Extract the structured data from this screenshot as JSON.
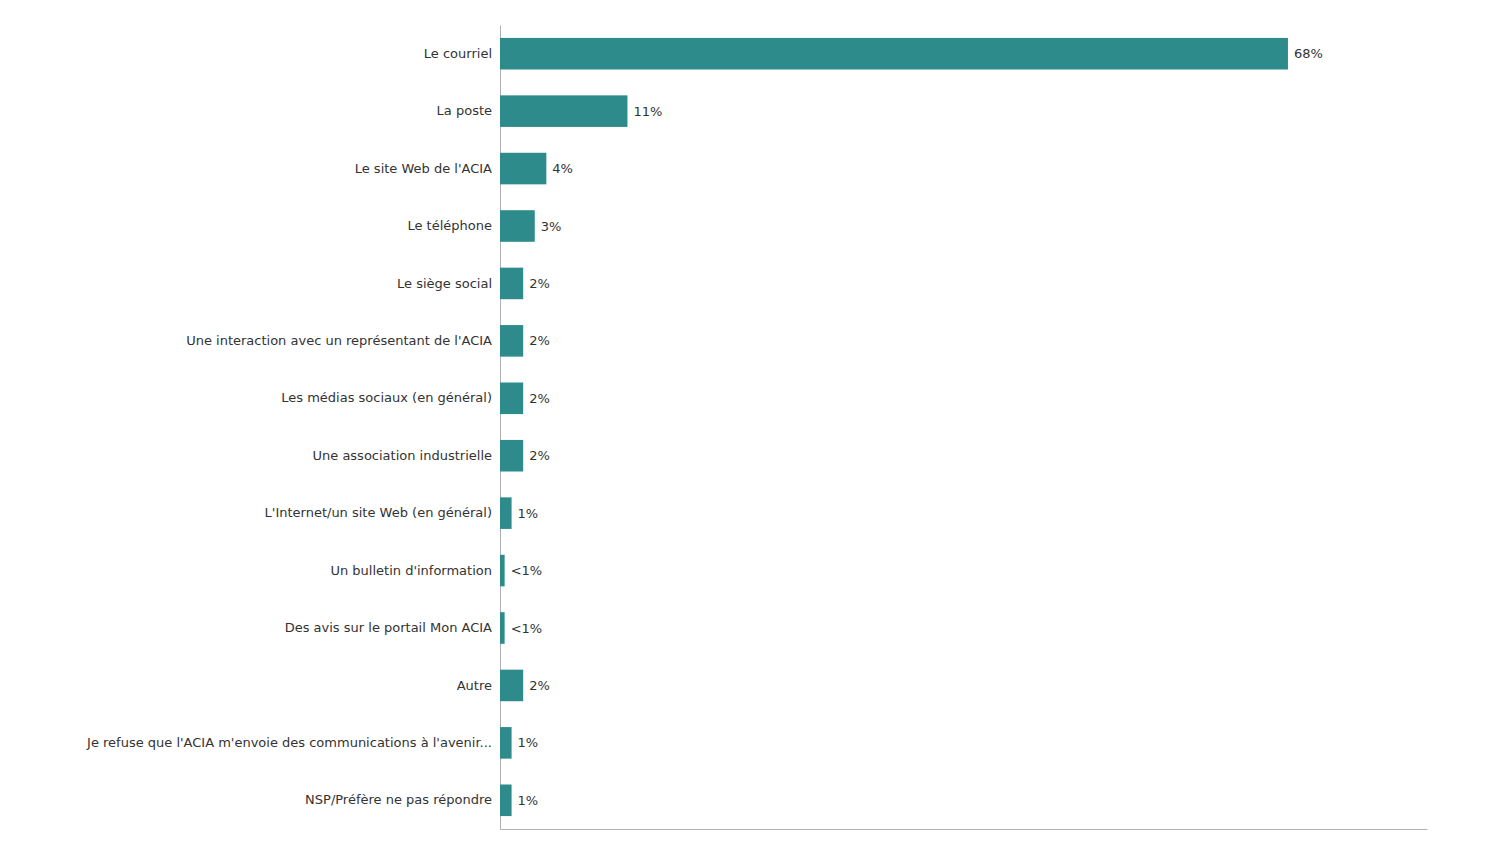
{
  "chart_data": {
    "type": "bar",
    "orientation": "horizontal",
    "categories": [
      "NSP/Préfère ne pas répondre",
      "Je refuse que l'ACIA m'envoie des communications à l'avenir...",
      "Autre",
      "Des avis sur le portail Mon ACIA",
      "Un bulletin d'information",
      "L'Internet/un site Web (en général)",
      "Une association industrielle",
      "Les médias sociaux (en général)",
      "Une interaction avec un représentant de l'ACIA",
      "Le siège social",
      "Le téléphone",
      "Le site Web de l'ACIA",
      "La poste",
      "Le courriel"
    ],
    "values": [
      1,
      1,
      2,
      0.4,
      0.4,
      1,
      2,
      2,
      2,
      2,
      3,
      4,
      11,
      68
    ],
    "value_labels": [
      "1%",
      "1%",
      "2%",
      "<1%",
      "<1%",
      "1%",
      "2%",
      "2%",
      "2%",
      "2%",
      "3%",
      "4%",
      "11%",
      "68%"
    ],
    "data_labels": true,
    "color": "#2e8b8b",
    "xlim": [
      0,
      80
    ],
    "tick_labels": "y",
    "grid": false
  }
}
